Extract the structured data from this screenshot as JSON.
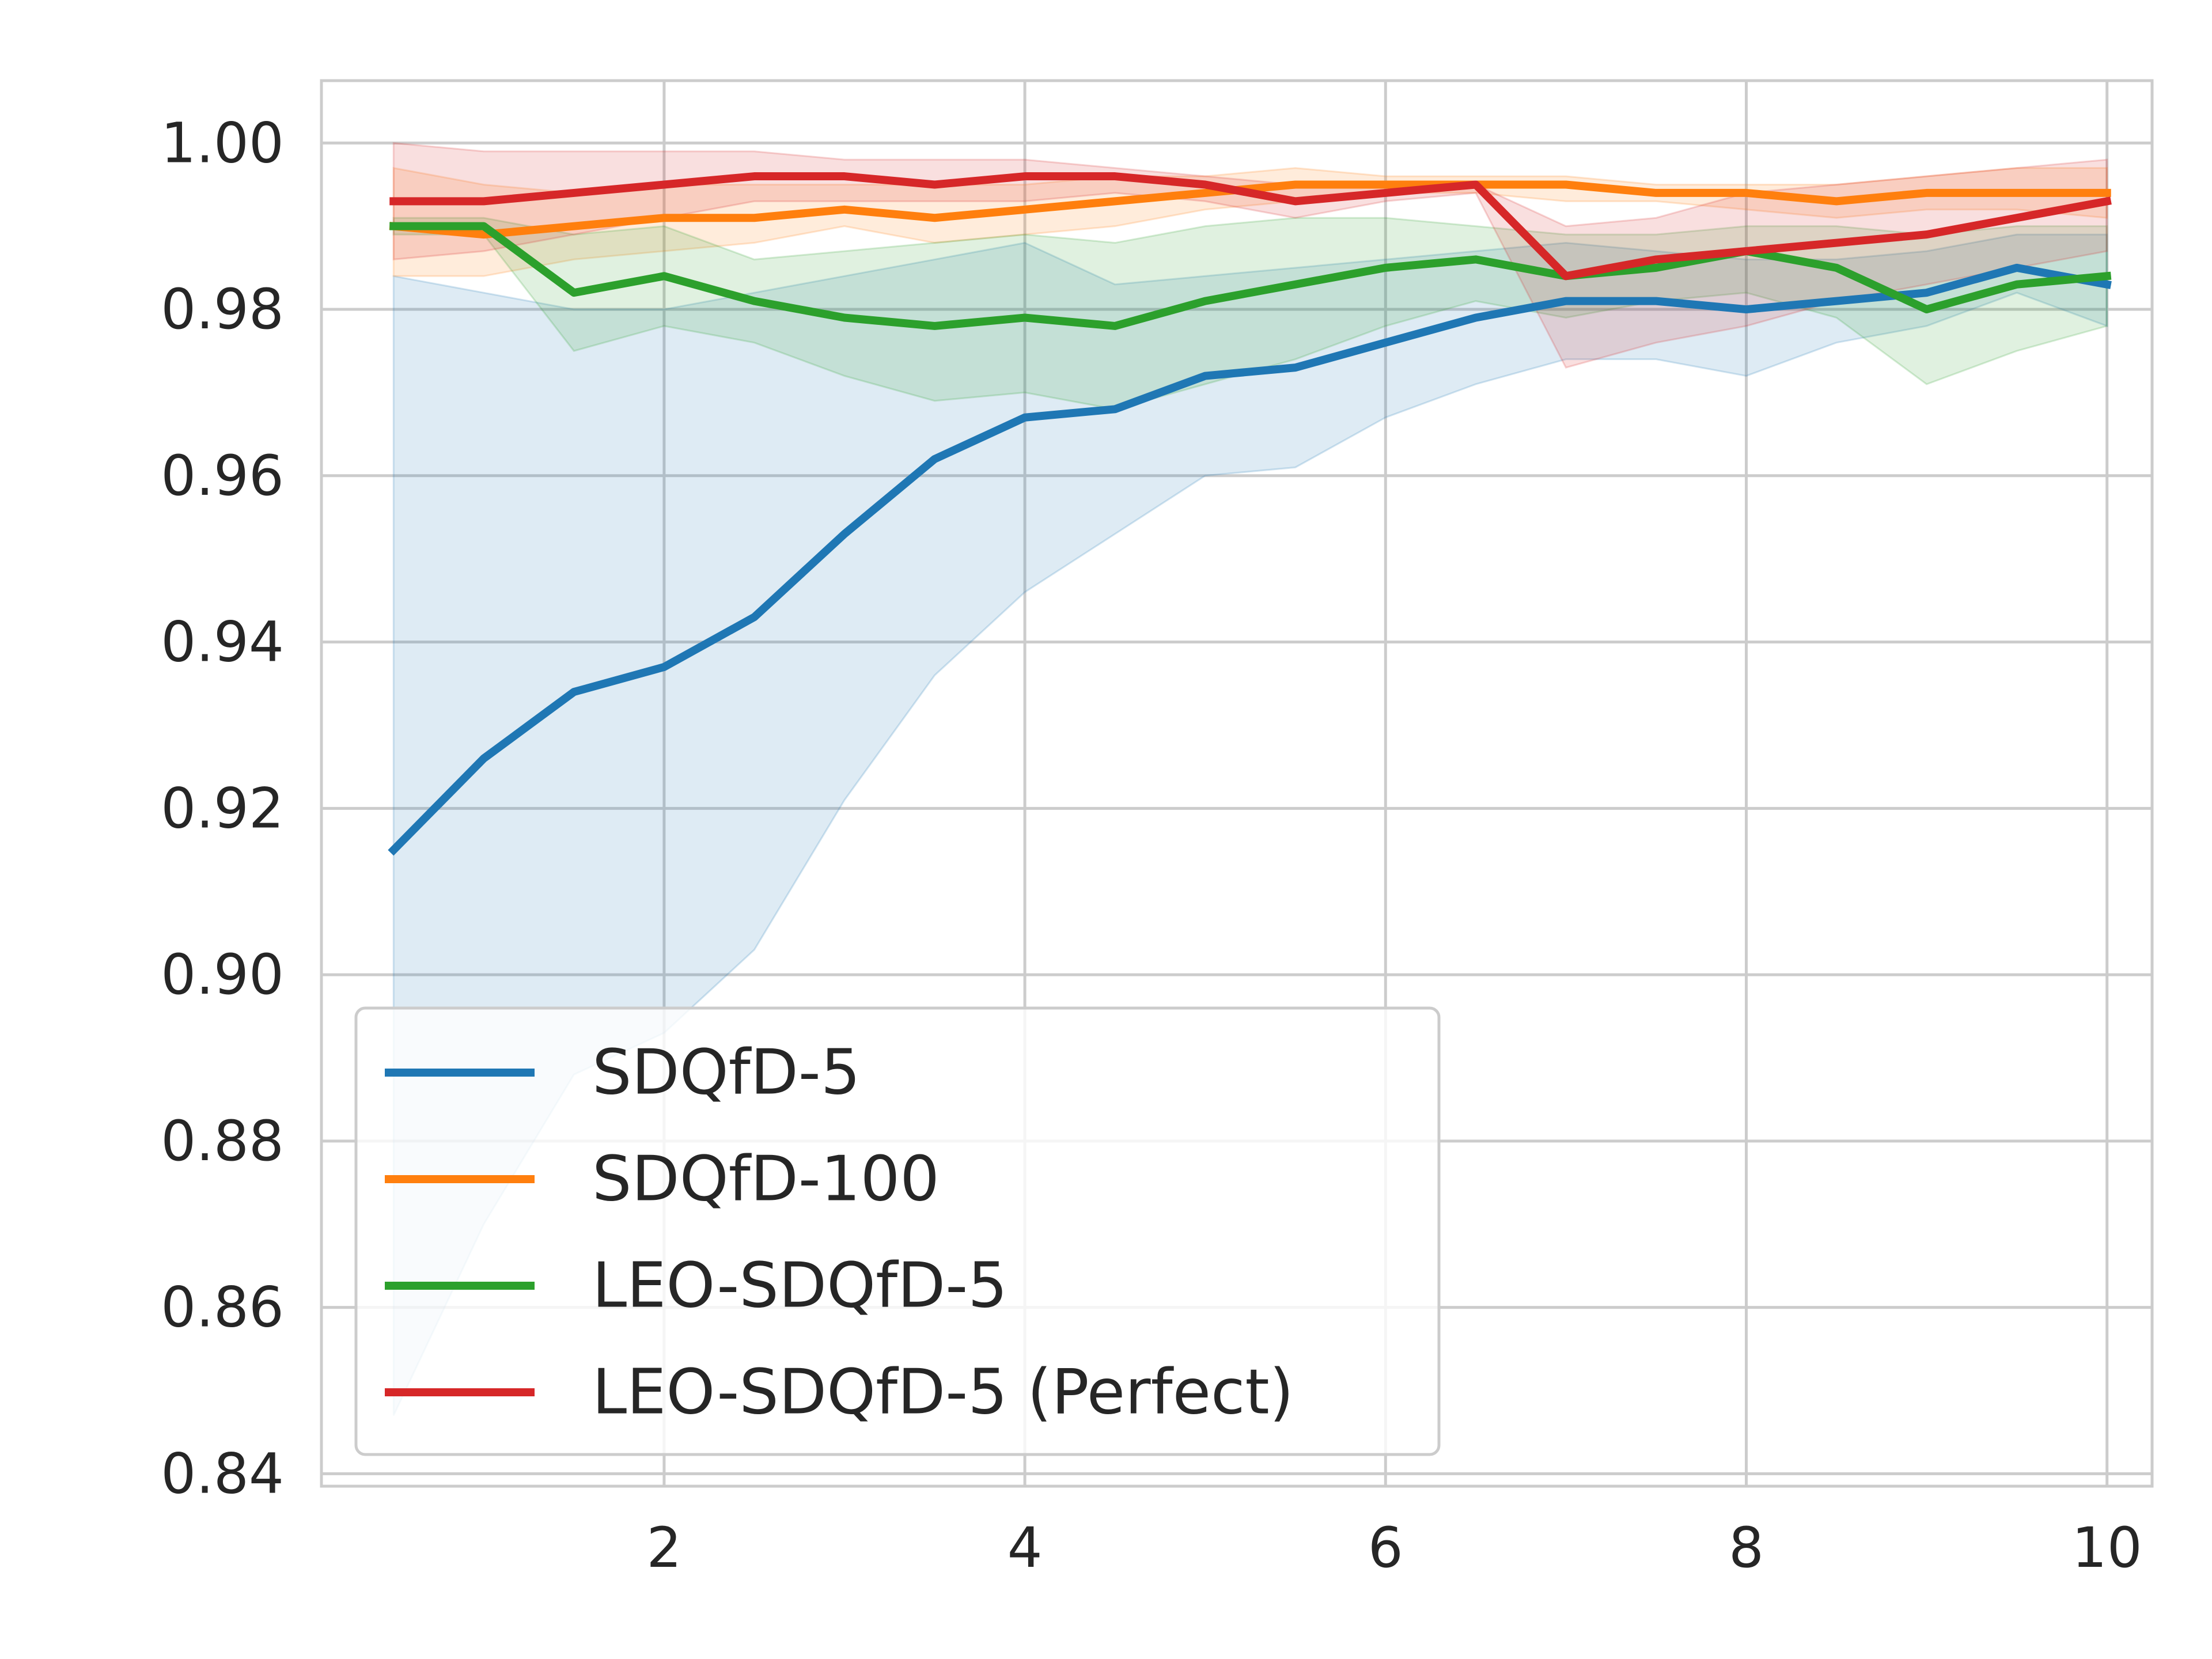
{
  "chart_data": {
    "type": "line",
    "title": "",
    "xlabel": "",
    "ylabel": "",
    "xlim": [
      0.1,
      10.25
    ],
    "ylim": [
      0.8385,
      1.0075
    ],
    "xticks": [
      2,
      4,
      6,
      8,
      10
    ],
    "xtick_labels": [
      "2",
      "4",
      "6",
      "8",
      "10"
    ],
    "yticks": [
      0.84,
      0.86,
      0.88,
      0.9,
      0.92,
      0.94,
      0.96,
      0.98,
      1.0
    ],
    "ytick_labels": [
      "0.84",
      "0.86",
      "0.88",
      "0.90",
      "0.92",
      "0.94",
      "0.96",
      "0.98",
      "1.00"
    ],
    "grid": true,
    "legend_position": "lower-left",
    "x": [
      0.5,
      1.0,
      1.5,
      2.0,
      2.5,
      3.0,
      3.5,
      4.0,
      4.5,
      5.0,
      5.5,
      6.0,
      6.5,
      7.0,
      7.5,
      8.0,
      8.5,
      9.0,
      9.5,
      10.0
    ],
    "series": [
      {
        "name": "SDQfD-5",
        "color": "#1f77b4",
        "values": [
          0.915,
          0.926,
          0.934,
          0.937,
          0.943,
          0.953,
          0.962,
          0.967,
          0.968,
          0.972,
          0.973,
          0.976,
          0.979,
          0.981,
          0.981,
          0.98,
          0.981,
          0.982,
          0.985,
          0.983
        ],
        "upper": [
          0.984,
          0.982,
          0.98,
          0.98,
          0.982,
          0.984,
          0.986,
          0.988,
          0.983,
          0.984,
          0.985,
          0.986,
          0.987,
          0.988,
          0.987,
          0.986,
          0.986,
          0.987,
          0.989,
          0.989
        ],
        "lower": [
          0.847,
          0.87,
          0.888,
          0.893,
          0.903,
          0.921,
          0.936,
          0.946,
          0.953,
          0.96,
          0.961,
          0.967,
          0.971,
          0.974,
          0.974,
          0.972,
          0.976,
          0.978,
          0.982,
          0.978
        ]
      },
      {
        "name": "SDQfD-100",
        "color": "#ff7f0e",
        "values": [
          0.99,
          0.989,
          0.99,
          0.991,
          0.991,
          0.992,
          0.991,
          0.992,
          0.993,
          0.994,
          0.995,
          0.995,
          0.995,
          0.995,
          0.994,
          0.994,
          0.993,
          0.994,
          0.994,
          0.994
        ],
        "upper": [
          0.997,
          0.995,
          0.994,
          0.995,
          0.995,
          0.995,
          0.995,
          0.995,
          0.996,
          0.996,
          0.997,
          0.996,
          0.996,
          0.996,
          0.995,
          0.995,
          0.995,
          0.996,
          0.997,
          0.997
        ],
        "lower": [
          0.984,
          0.984,
          0.986,
          0.987,
          0.988,
          0.99,
          0.988,
          0.989,
          0.99,
          0.992,
          0.993,
          0.994,
          0.994,
          0.993,
          0.993,
          0.992,
          0.991,
          0.992,
          0.992,
          0.991
        ]
      },
      {
        "name": "LEO-SDQfD-5",
        "color": "#2ca02c",
        "values": [
          0.99,
          0.99,
          0.982,
          0.984,
          0.981,
          0.979,
          0.978,
          0.979,
          0.978,
          0.981,
          0.983,
          0.985,
          0.986,
          0.984,
          0.985,
          0.987,
          0.985,
          0.98,
          0.983,
          0.984
        ],
        "upper": [
          0.991,
          0.991,
          0.989,
          0.99,
          0.986,
          0.987,
          0.988,
          0.989,
          0.988,
          0.99,
          0.991,
          0.991,
          0.99,
          0.989,
          0.989,
          0.99,
          0.99,
          0.989,
          0.99,
          0.99
        ],
        "lower": [
          0.989,
          0.989,
          0.975,
          0.978,
          0.976,
          0.972,
          0.969,
          0.97,
          0.968,
          0.971,
          0.974,
          0.978,
          0.981,
          0.979,
          0.981,
          0.982,
          0.979,
          0.971,
          0.975,
          0.978
        ]
      },
      {
        "name": "LEO-SDQfD-5 (Perfect)",
        "color": "#d62728",
        "values": [
          0.993,
          0.993,
          0.994,
          0.995,
          0.996,
          0.996,
          0.995,
          0.996,
          0.996,
          0.995,
          0.993,
          0.994,
          0.995,
          0.984,
          0.986,
          0.987,
          0.988,
          0.989,
          0.991,
          0.993
        ],
        "upper": [
          1.0,
          0.999,
          0.999,
          0.999,
          0.999,
          0.998,
          0.998,
          0.998,
          0.997,
          0.996,
          0.995,
          0.995,
          0.995,
          0.99,
          0.991,
          0.994,
          0.995,
          0.996,
          0.997,
          0.998
        ],
        "lower": [
          0.986,
          0.987,
          0.989,
          0.991,
          0.993,
          0.993,
          0.993,
          0.993,
          0.994,
          0.993,
          0.991,
          0.993,
          0.994,
          0.973,
          0.976,
          0.978,
          0.981,
          0.983,
          0.985,
          0.987
        ]
      }
    ]
  }
}
